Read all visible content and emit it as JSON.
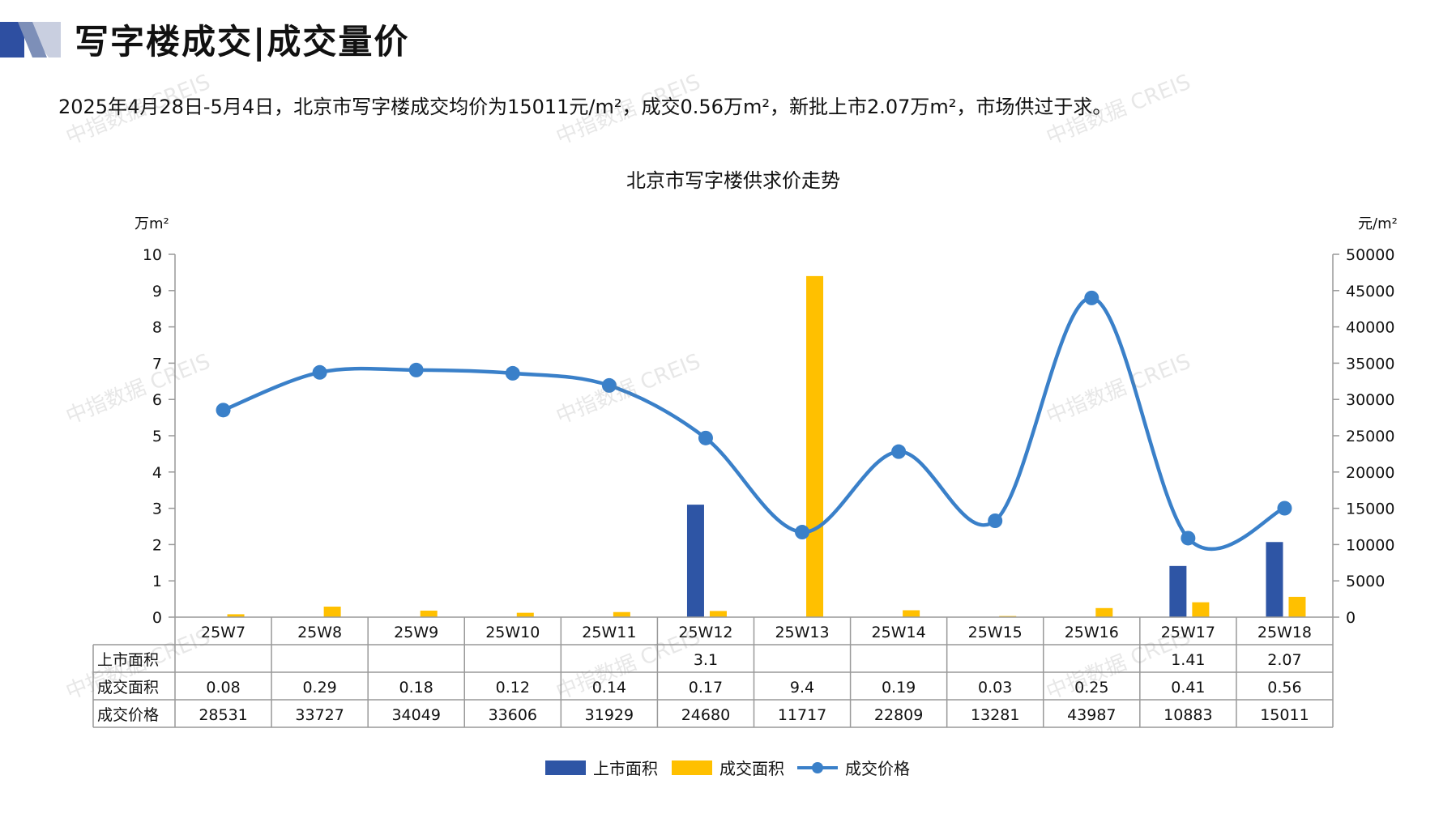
{
  "header": {
    "title": "写字楼成交|成交量价",
    "summary": "2025年4月28日-5月4日，北京市写字楼成交均价为15011元/m²，成交0.56万m²，新批上市2.07万m²，市场供过于求。"
  },
  "watermark": {
    "text": "中指数据 CREIS"
  },
  "colors": {
    "accent_dark": "#2e4fa1",
    "accent_light": "#c9cfe0",
    "supply": "#2e55a5",
    "sold": "#ffc000",
    "price": "#3a80c9"
  },
  "chart_data": {
    "type": "bar",
    "title": "北京市写字楼供求价走势",
    "y_left_unit": "万m²",
    "y_right_unit": "元/m²",
    "y_left_range": [
      0,
      10
    ],
    "y_left_ticks": [
      "0",
      "1",
      "2",
      "3",
      "4",
      "5",
      "6",
      "7",
      "8",
      "9",
      "10"
    ],
    "y_right_range": [
      0,
      50000
    ],
    "y_right_ticks": [
      "0",
      "5000",
      "10000",
      "15000",
      "20000",
      "25000",
      "30000",
      "35000",
      "40000",
      "45000",
      "50000"
    ],
    "categories": [
      "25W7",
      "25W8",
      "25W9",
      "25W10",
      "25W11",
      "25W12",
      "25W13",
      "25W14",
      "25W15",
      "25W16",
      "25W17",
      "25W18"
    ],
    "series": [
      {
        "name": "上市面积",
        "type": "bar",
        "axis": "left",
        "values": [
          null,
          null,
          null,
          null,
          null,
          3.1,
          null,
          null,
          null,
          null,
          1.41,
          2.07
        ],
        "labels": [
          "",
          "",
          "",
          "",
          "",
          "3.1",
          "",
          "",
          "",
          "",
          "1.41",
          "2.07"
        ]
      },
      {
        "name": "成交面积",
        "type": "bar",
        "axis": "left",
        "values": [
          0.08,
          0.29,
          0.18,
          0.12,
          0.14,
          0.17,
          9.4,
          0.19,
          0.03,
          0.25,
          0.41,
          0.56
        ],
        "labels": [
          "0.08",
          "0.29",
          "0.18",
          "0.12",
          "0.14",
          "0.17",
          "9.4",
          "0.19",
          "0.03",
          "0.25",
          "0.41",
          "0.56"
        ]
      },
      {
        "name": "成交价格",
        "type": "line",
        "axis": "right",
        "values": [
          28531,
          33727,
          34049,
          33606,
          31929,
          24680,
          11717,
          22809,
          13281,
          43987,
          10883,
          15011
        ],
        "labels": [
          "28531",
          "33727",
          "34049",
          "33606",
          "31929",
          "24680",
          "11717",
          "22809",
          "13281",
          "43987",
          "10883",
          "15011"
        ]
      }
    ],
    "legend_position": "bottom-center",
    "grid": false
  }
}
